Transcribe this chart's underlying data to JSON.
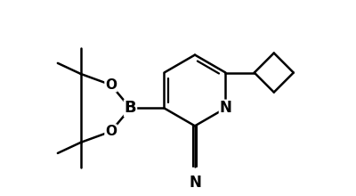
{
  "background_color": "#ffffff",
  "line_color": "#000000",
  "line_width": 1.8,
  "font_size": 11,
  "label_font_size": 12,
  "figsize": [
    4.0,
    2.2
  ],
  "dpi": 100,
  "xlim": [
    0,
    10
  ],
  "ylim": [
    0,
    5.5
  ]
}
